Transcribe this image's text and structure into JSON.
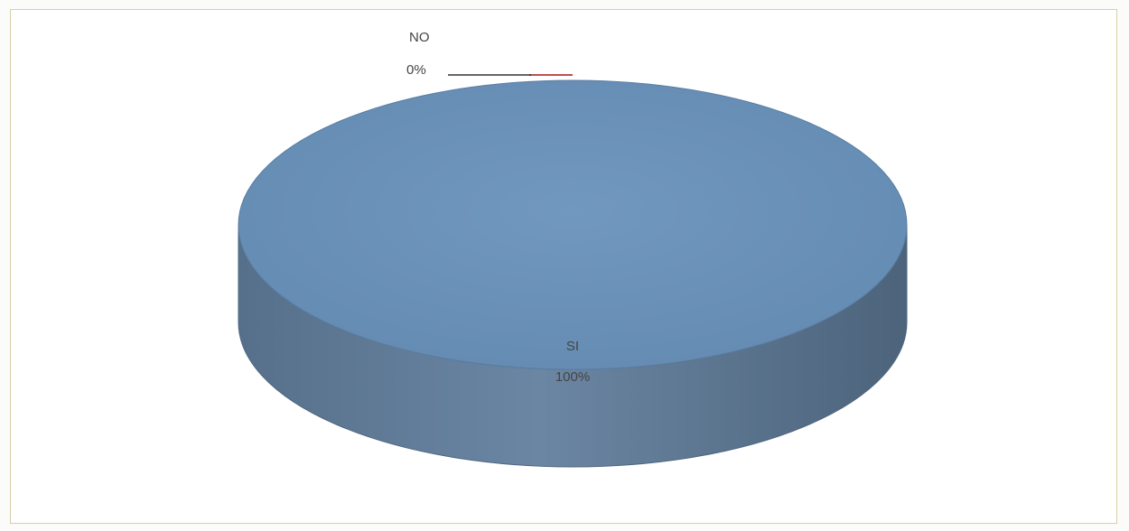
{
  "chart_data": {
    "type": "pie",
    "style": "3d",
    "categories": [
      "SI",
      "NO"
    ],
    "values": [
      100,
      0
    ],
    "labels": [
      {
        "name": "SI",
        "percent": "100%"
      },
      {
        "name": "NO",
        "percent": "0%"
      }
    ],
    "colors": {
      "SI": "#6b90b6",
      "NO": "#c0504d"
    },
    "legend": "none"
  }
}
